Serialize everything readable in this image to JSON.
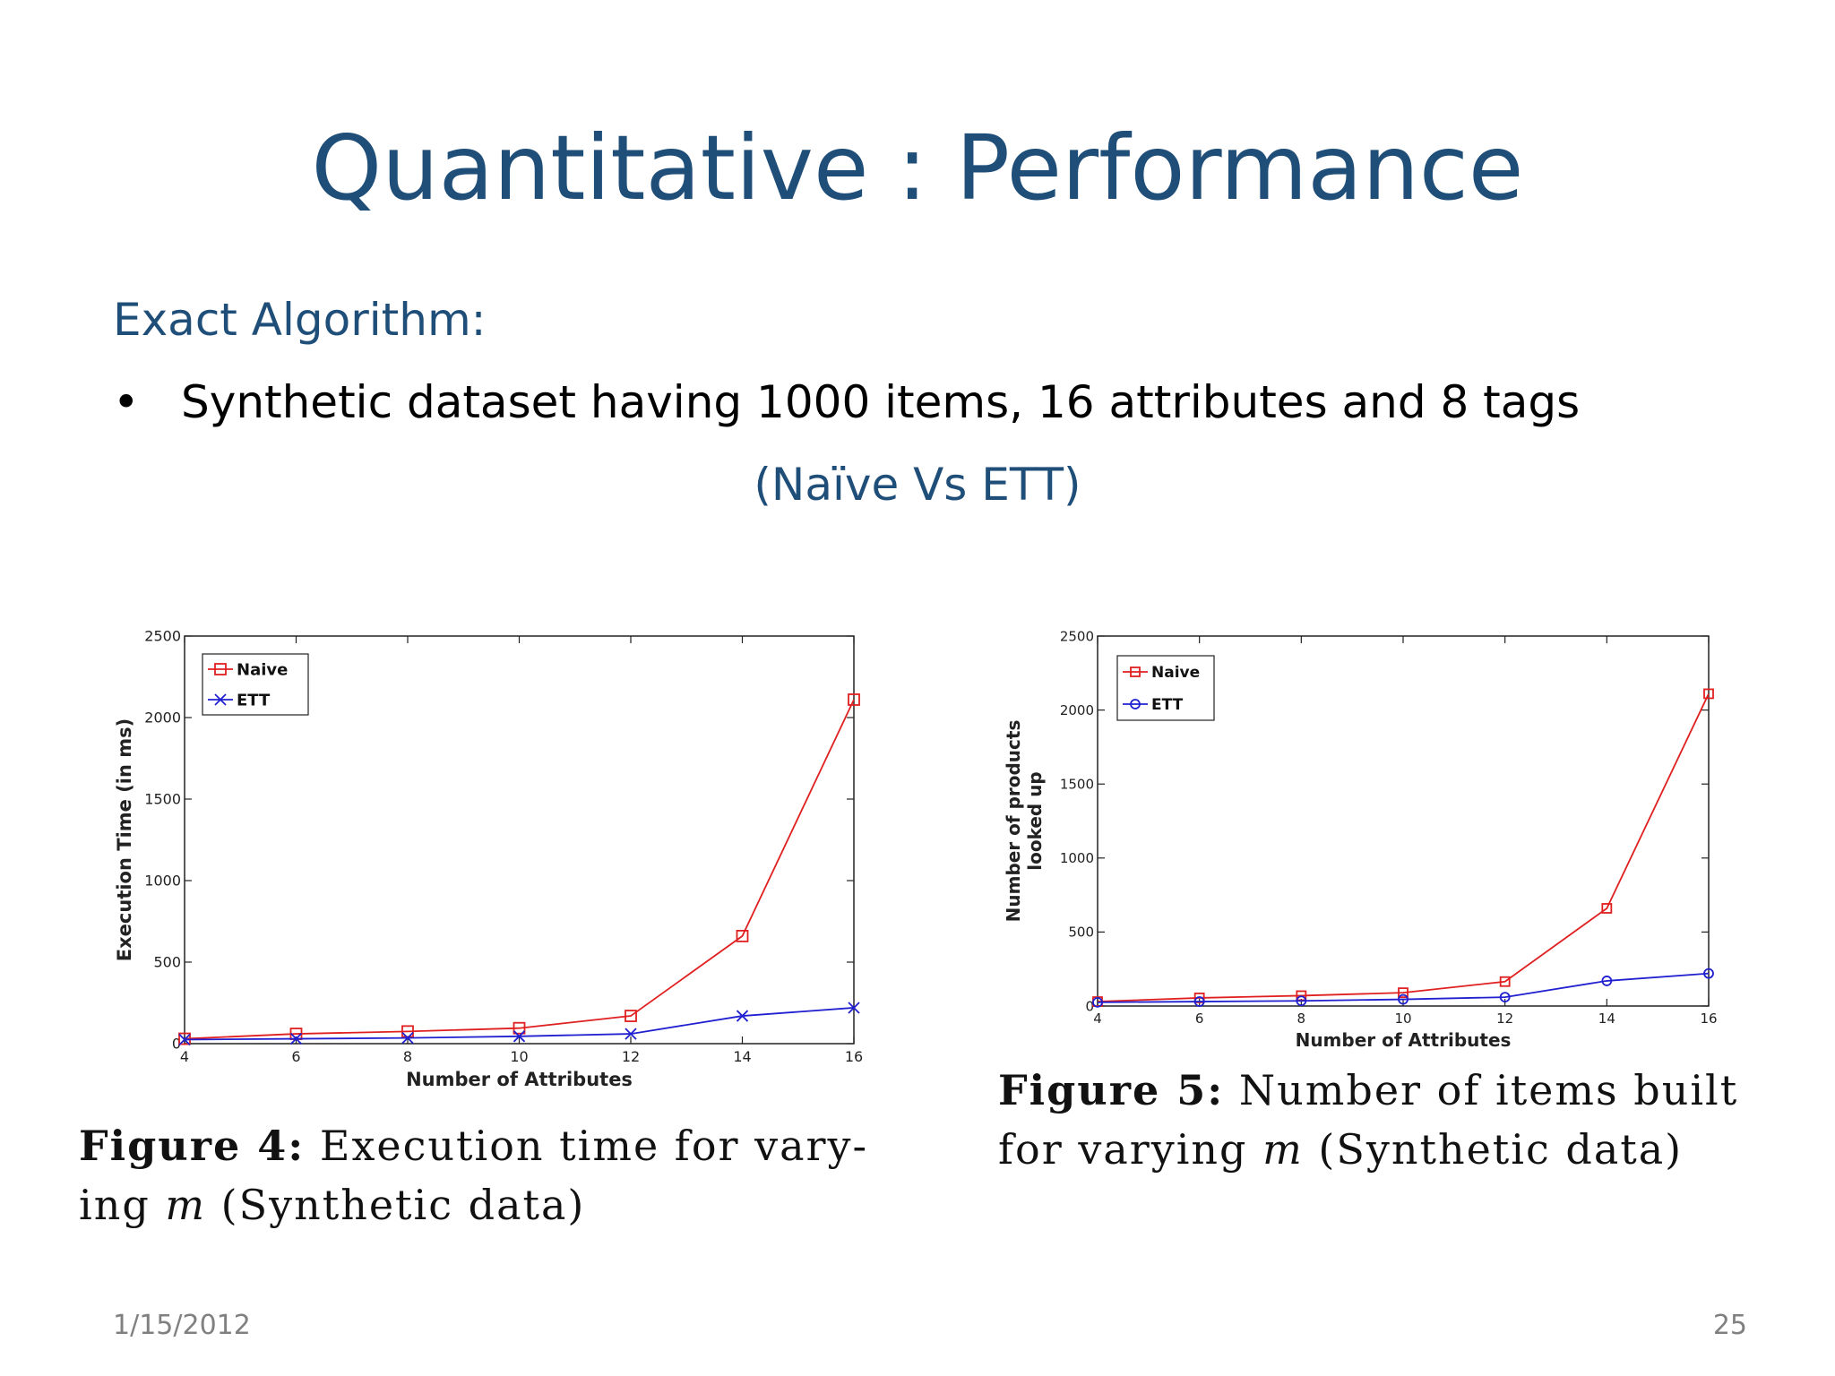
{
  "slide": {
    "title": "Quantitative : Performance",
    "subheading": "Exact Algorithm:",
    "bullet_symbol": "•",
    "bullet_text": "Synthetic dataset having 1000 items, 16 attributes and 8 tags",
    "comparison_note": "(Naïve Vs ETT)",
    "date": "1/15/2012",
    "page_number": "25"
  },
  "captions": {
    "fig4": {
      "label": "Figure 4:",
      "text_a": " Execution time for vary-",
      "text_b": "ing ",
      "var": "m",
      "text_c": " (Synthetic data)"
    },
    "fig5": {
      "label": "Figure 5:",
      "text_a": " Number of items built",
      "text_b": "for varying ",
      "var": "m",
      "text_c": " (Synthetic data)"
    }
  },
  "chart_data": [
    {
      "type": "line",
      "xlabel": "Number of Attributes",
      "ylabel": "Execution Time (in ms)",
      "x": [
        4,
        6,
        8,
        10,
        12,
        14,
        16
      ],
      "xticks": [
        "4",
        "6",
        "8",
        "10",
        "12",
        "14",
        "16"
      ],
      "yticks": [
        "0",
        "500",
        "1000",
        "1500",
        "2000",
        "2500"
      ],
      "xlim": [
        4,
        16
      ],
      "ylim": [
        0,
        2500
      ],
      "legend_position": "top-left",
      "series": [
        {
          "name": "Naive",
          "marker": "square",
          "color": "#e02020",
          "values": [
            30,
            60,
            75,
            95,
            170,
            660,
            2110
          ]
        },
        {
          "name": "ETT",
          "marker": "x",
          "color": "#2020d0",
          "values": [
            25,
            30,
            35,
            45,
            60,
            170,
            220
          ]
        }
      ]
    },
    {
      "type": "line",
      "xlabel": "Number of Attributes",
      "ylabel_line1": "Number of products",
      "ylabel_line2": "looked up",
      "x": [
        4,
        6,
        8,
        10,
        12,
        14,
        16
      ],
      "xticks": [
        "4",
        "6",
        "8",
        "10",
        "12",
        "14",
        "16"
      ],
      "yticks": [
        "0",
        "500",
        "1000",
        "1500",
        "2000",
        "2500"
      ],
      "xlim": [
        4,
        16
      ],
      "ylim": [
        0,
        2500
      ],
      "legend_position": "top-left",
      "series": [
        {
          "name": "Naive",
          "marker": "square",
          "color": "#e02020",
          "values": [
            30,
            55,
            70,
            90,
            165,
            660,
            2110
          ]
        },
        {
          "name": "ETT",
          "marker": "circle",
          "color": "#2020d0",
          "values": [
            25,
            30,
            35,
            45,
            60,
            170,
            220
          ]
        }
      ]
    }
  ]
}
